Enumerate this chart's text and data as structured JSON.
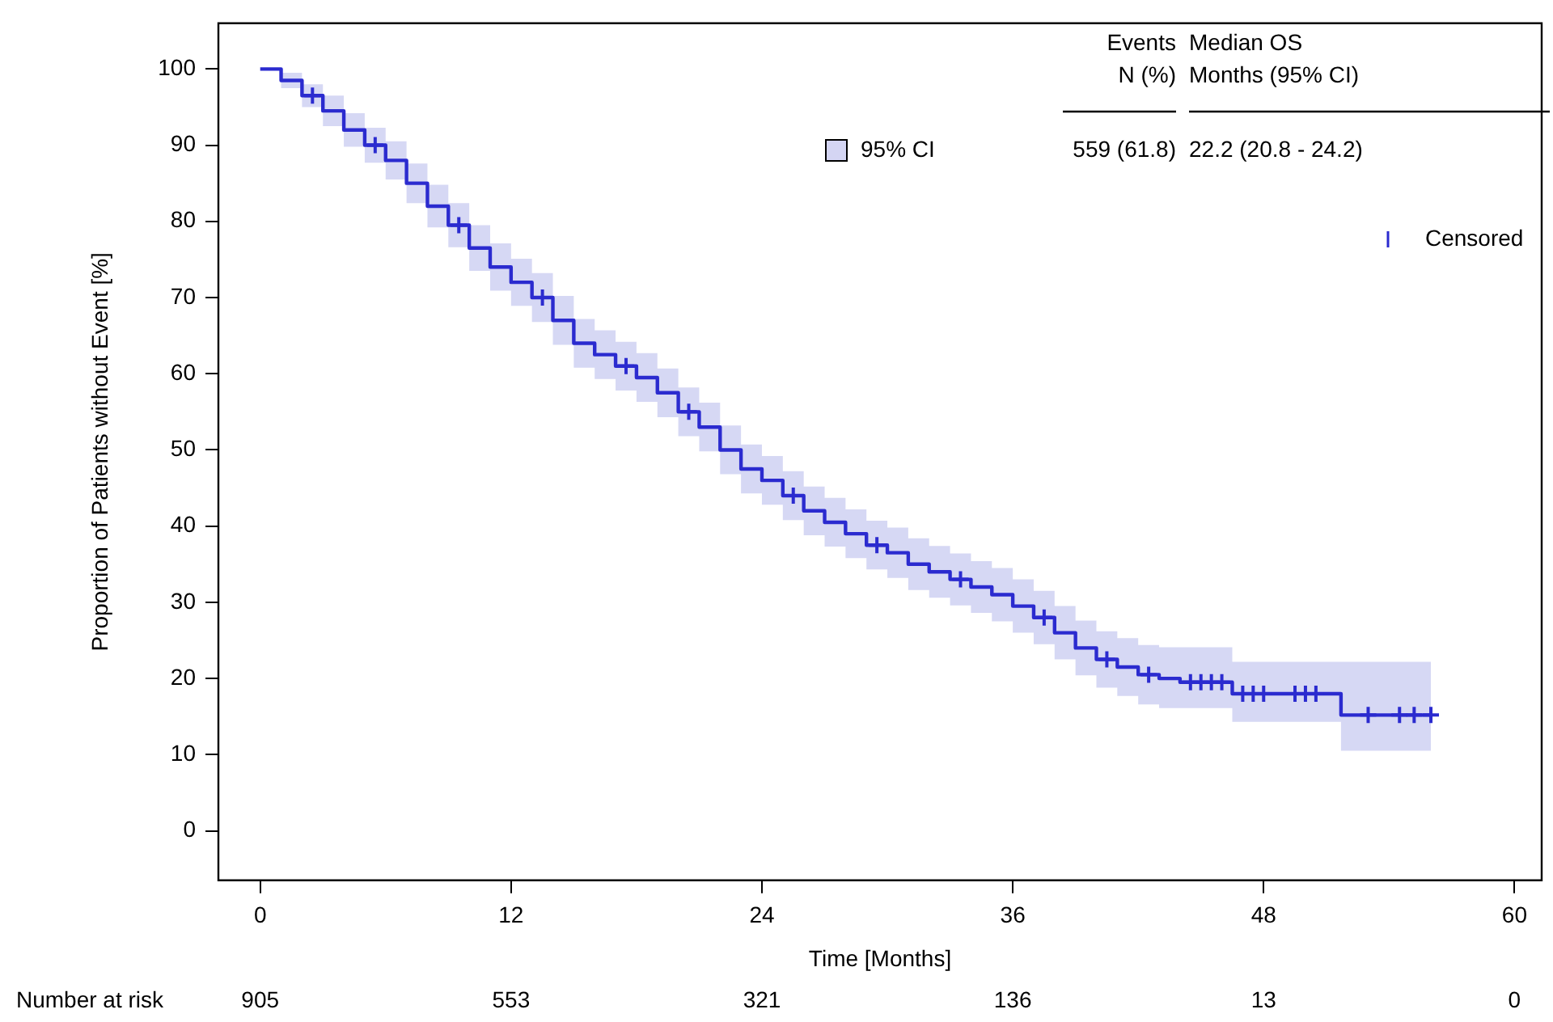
{
  "chart_data": {
    "type": "step",
    "xlabel": "Time [Months]",
    "ylabel": "Proportion of Patients without Event [%]",
    "xlim": [
      -2,
      61.3
    ],
    "ylim": [
      -6.5,
      106
    ],
    "xticks": [
      0,
      12,
      24,
      36,
      48,
      60
    ],
    "yticks": [
      0,
      10,
      20,
      30,
      40,
      50,
      60,
      70,
      80,
      90,
      100
    ],
    "grid": false,
    "legend": "top right",
    "x": [
      0,
      1,
      2,
      3,
      4,
      5,
      6,
      7,
      8,
      9,
      10,
      11,
      12,
      13,
      14,
      15,
      16,
      17,
      18,
      19,
      20,
      21,
      22,
      23,
      24,
      25,
      26,
      27,
      28,
      29,
      30,
      31,
      32,
      33,
      34,
      35,
      36,
      37,
      38,
      39,
      40,
      41,
      42,
      43,
      44,
      46.5,
      51.7,
      56
    ],
    "series": [
      {
        "color": "#2b2bcf",
        "values": [
          100,
          98.5,
          96.5,
          94.5,
          92,
          90,
          88,
          85,
          82,
          79.5,
          76.5,
          74,
          72,
          70,
          67,
          64,
          62.5,
          61,
          59.5,
          57.5,
          55,
          53,
          50,
          47.5,
          46,
          44,
          42,
          40.5,
          39,
          37.5,
          36.5,
          35,
          34,
          33,
          32,
          31,
          29.5,
          28,
          26,
          24,
          22.5,
          21.5,
          20.5,
          20,
          19.5,
          18,
          15.2,
          15.2
        ],
        "lower": [
          100,
          97.5,
          95,
          92.5,
          89.8,
          87.7,
          85.5,
          82.4,
          79.2,
          76.6,
          73.5,
          70.9,
          68.9,
          66.8,
          63.8,
          60.8,
          59.3,
          57.8,
          56.3,
          54.3,
          51.8,
          49.8,
          46.8,
          44.3,
          42.8,
          40.8,
          38.8,
          37.3,
          35.8,
          34.3,
          33.2,
          31.6,
          30.6,
          29.6,
          28.6,
          27.5,
          26,
          24.5,
          22.5,
          20.4,
          18.8,
          17.7,
          16.6,
          16.1,
          16.1,
          14.3,
          10.5,
          10.5
        ],
        "upper": [
          100,
          99.5,
          98,
          96.5,
          94.2,
          92.3,
          90.5,
          87.6,
          84.8,
          82.4,
          79.5,
          77.1,
          75.1,
          73.2,
          70.2,
          67.2,
          65.7,
          64.2,
          62.7,
          60.7,
          58.2,
          56.2,
          53.2,
          50.7,
          49.2,
          47.2,
          45.2,
          43.7,
          42.2,
          40.7,
          39.8,
          38.4,
          37.4,
          36.4,
          35.4,
          34.5,
          33,
          31.5,
          29.5,
          27.6,
          26.2,
          25.3,
          24.4,
          24.1,
          24.1,
          22.2,
          22.2,
          22.2
        ]
      },
      {
        "type": "scatter",
        "name": "Censored",
        "color": "#2b2bcf",
        "marker": "cross",
        "x": [
          2.5,
          5.5,
          9.5,
          13.5,
          17.5,
          20.5,
          25.5,
          29.5,
          33.5,
          37.5,
          40.5,
          42.5,
          44.5,
          45,
          45.5,
          46,
          47,
          47.5,
          48,
          49.5,
          50,
          50.5,
          53,
          54.5,
          55.2,
          56
        ],
        "values": [
          96.5,
          90,
          79.5,
          70,
          61,
          55,
          44,
          37.5,
          33,
          28,
          22.5,
          20.5,
          19.5,
          19.5,
          19.5,
          19.5,
          18,
          18,
          18,
          18,
          18,
          18,
          15.2,
          15.2,
          15.2,
          15.2
        ]
      }
    ],
    "annotations": [
      "Events\nN (%)",
      "Median OS\nMonths (95% CI)",
      "559 (61.8)",
      "22.2 (20.8 - 24.2)",
      "95% CI",
      "Number at risk",
      "905",
      "553",
      "321",
      "136",
      "13",
      "0"
    ]
  }
}
